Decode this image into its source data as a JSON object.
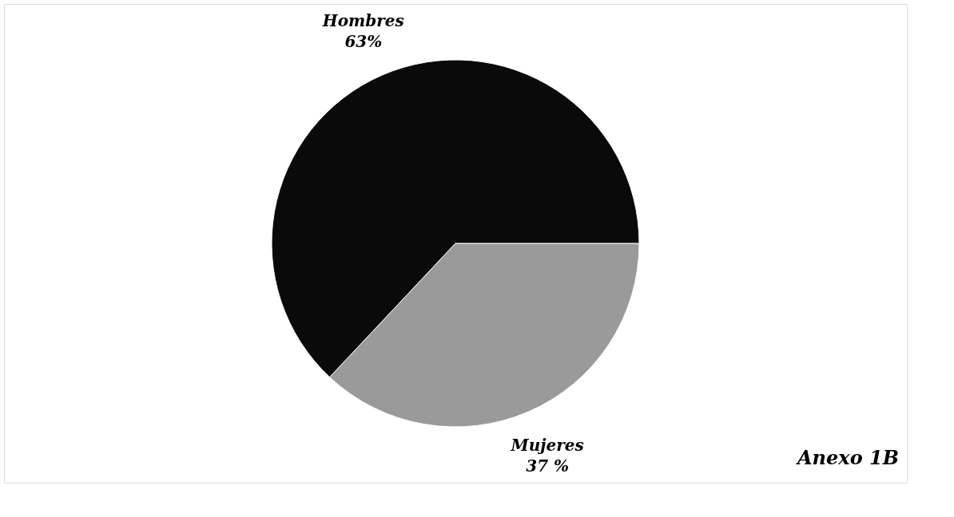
{
  "chart_data": {
    "type": "pie",
    "categories": [
      "Mujeres",
      "Hombres"
    ],
    "values": [
      37,
      63
    ],
    "colors": [
      "#9a9a9a",
      "#0a0a0a"
    ],
    "value_labels": [
      "37 %",
      "63%"
    ],
    "annotations": [
      "Anexo 1B"
    ],
    "legend": false
  }
}
